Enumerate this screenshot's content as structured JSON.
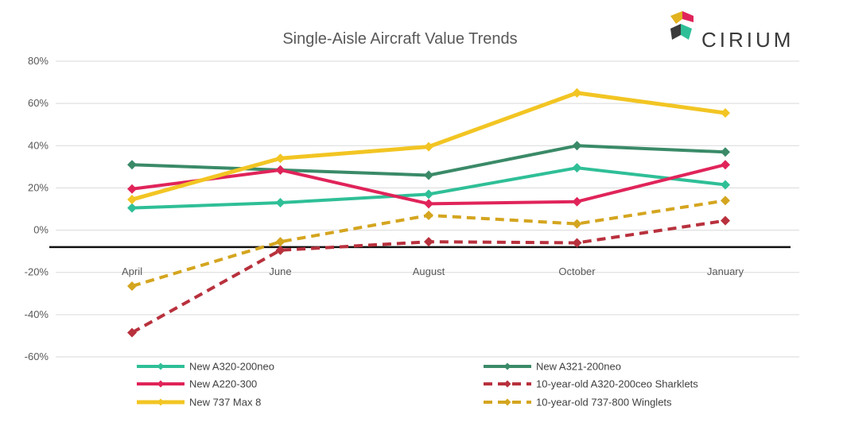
{
  "logo": {
    "text": "CIRIUM"
  },
  "chart_data": {
    "type": "line",
    "title": "Single-Aisle Aircraft Value Trends",
    "xlabel": "",
    "ylabel": "",
    "categories": [
      "April",
      "June",
      "August",
      "October",
      "January"
    ],
    "ylim": [
      -60,
      80
    ],
    "yticks": [
      80,
      60,
      40,
      20,
      0,
      -20,
      -40,
      -60
    ],
    "ytick_labels": [
      "80%",
      "60%",
      "40%",
      "20%",
      "0%",
      "-20%",
      "-40%",
      "-60%"
    ],
    "grid": true,
    "reference_line": -8,
    "legend_position": "bottom",
    "series": [
      {
        "name": "New A320-200neo",
        "values": [
          10.5,
          13,
          17,
          29.5,
          21.5
        ],
        "color": "#2fbf97",
        "dashed": false,
        "width": 4
      },
      {
        "name": "New A321-200neo",
        "values": [
          31,
          28.5,
          26,
          40,
          37
        ],
        "color": "#3a8a68",
        "dashed": false,
        "width": 4
      },
      {
        "name": "New A220-300",
        "values": [
          19.5,
          28.5,
          12.5,
          13.5,
          31
        ],
        "color": "#e0245a",
        "dashed": false,
        "width": 4
      },
      {
        "name": "10-year-old A320-200ceo Sharklets",
        "values": [
          -48.5,
          -9.5,
          -5.5,
          -6,
          4.5
        ],
        "color": "#b8313d",
        "dashed": true,
        "width": 4
      },
      {
        "name": "New 737 Max 8",
        "values": [
          14.5,
          34,
          39.5,
          65,
          55.5
        ],
        "color": "#f2c523",
        "dashed": false,
        "width": 5
      },
      {
        "name": "10-year-old 737-800 Winglets",
        "values": [
          -26.5,
          -5.5,
          7,
          3,
          14
        ],
        "color": "#d4a51f",
        "dashed": true,
        "width": 4
      }
    ]
  }
}
